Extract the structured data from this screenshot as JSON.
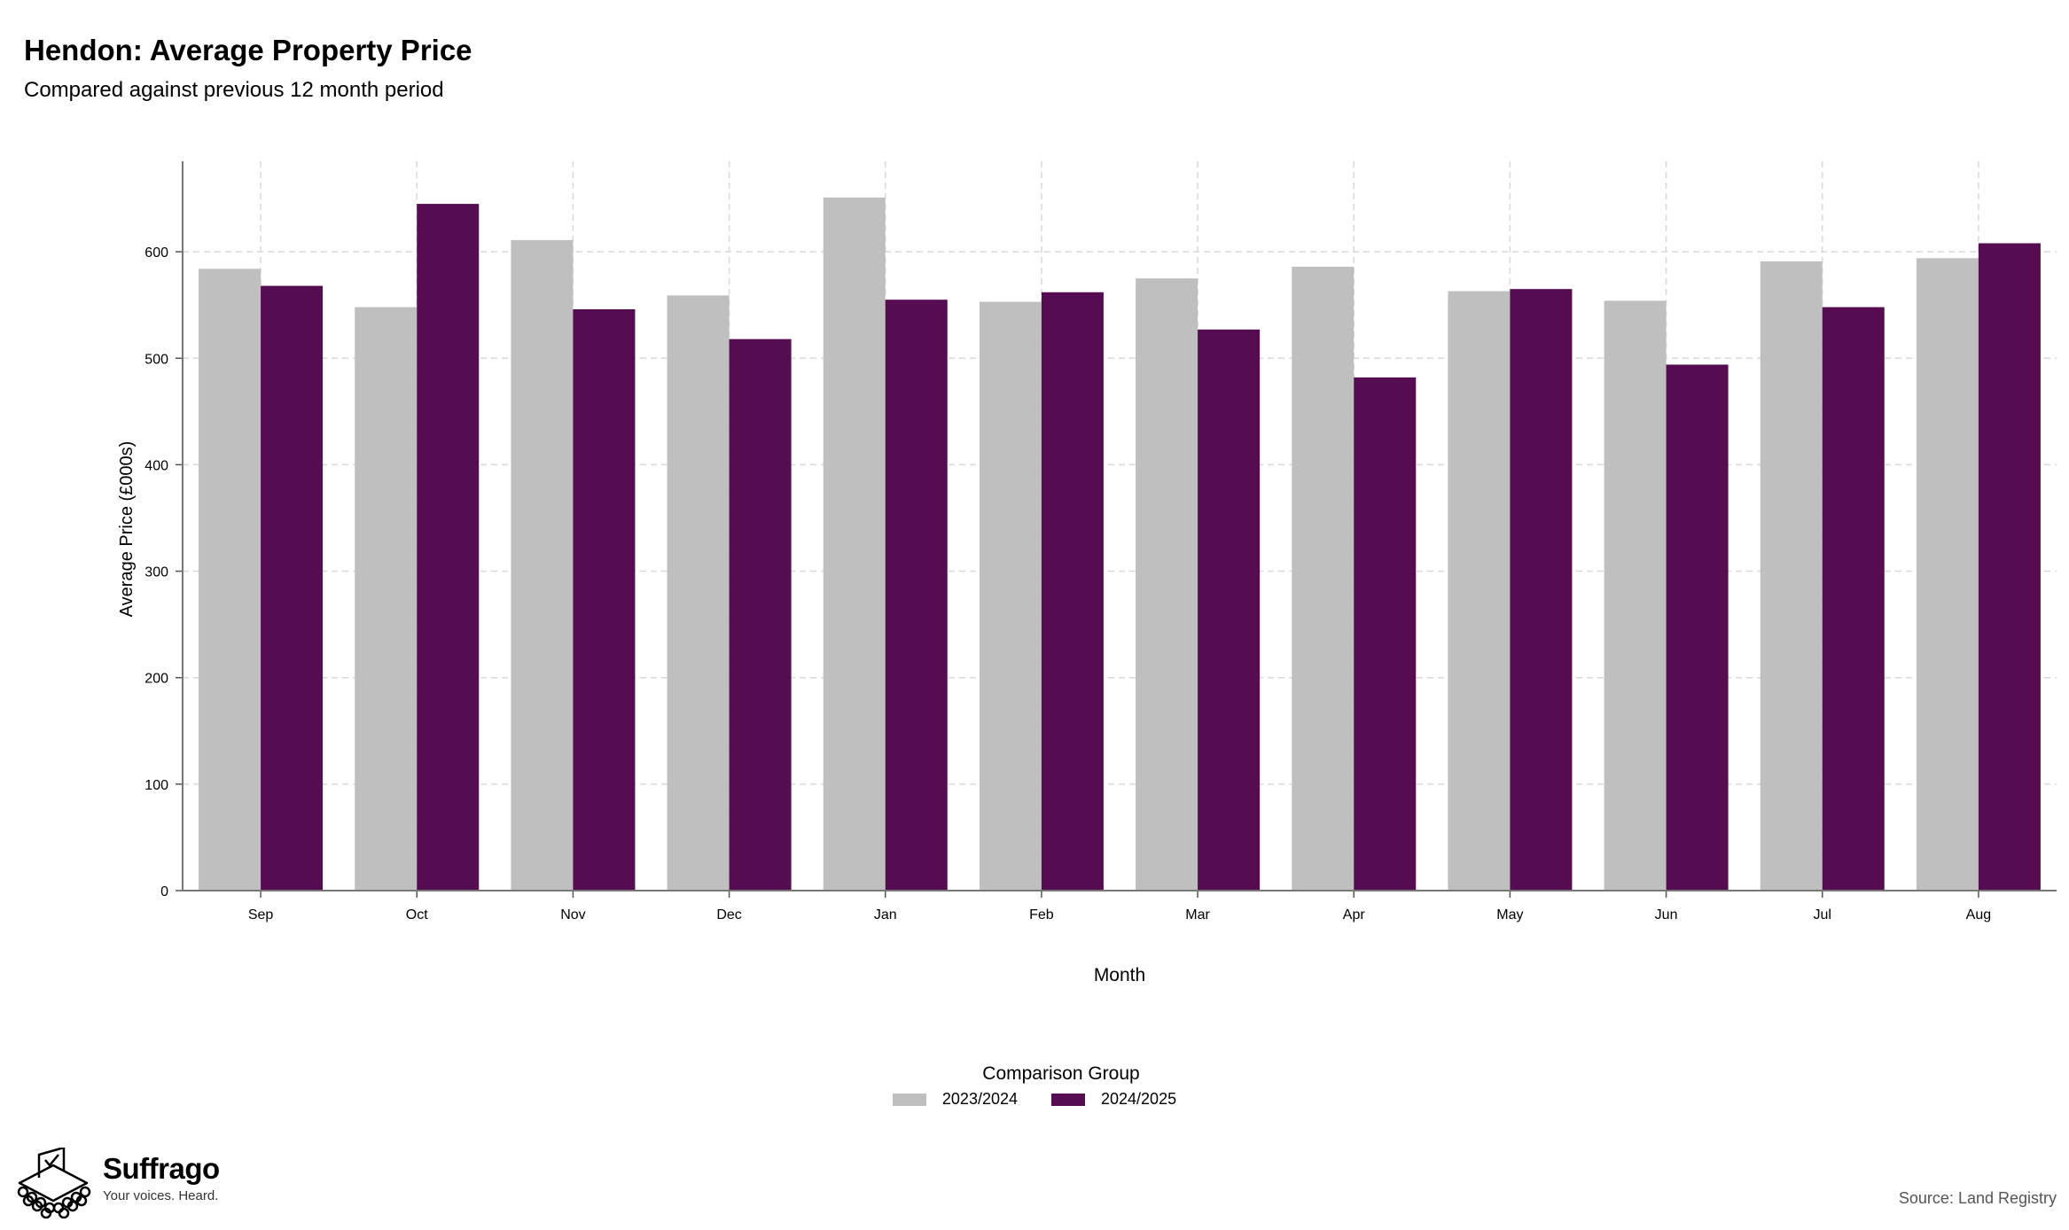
{
  "title": "Hendon: Average Property Price",
  "subtitle": "Compared against previous 12 month period",
  "source": "Source: Land Registry",
  "logo": {
    "name": "Suffrago",
    "tagline": "Your voices. Heard."
  },
  "legend": {
    "title": "Comparison Group"
  },
  "chart_data": {
    "type": "bar",
    "categories": [
      "Sep",
      "Oct",
      "Nov",
      "Dec",
      "Jan",
      "Feb",
      "Mar",
      "Apr",
      "May",
      "Jun",
      "Jul",
      "Aug"
    ],
    "series": [
      {
        "name": "2023/2024",
        "color": "#bfbfbf",
        "values": [
          584,
          548,
          611,
          559,
          651,
          553,
          575,
          586,
          563,
          554,
          591,
          594
        ]
      },
      {
        "name": "2024/2025",
        "color": "#550c50",
        "values": [
          568,
          645,
          546,
          518,
          555,
          562,
          527,
          482,
          565,
          494,
          548,
          608
        ]
      }
    ],
    "xlabel": "Month",
    "ylabel": "Average Price (£000s)",
    "ylim": [
      0,
      685
    ],
    "yticks": [
      0,
      100,
      200,
      300,
      400,
      500,
      600
    ],
    "grid": true,
    "legend_position": "bottom"
  }
}
